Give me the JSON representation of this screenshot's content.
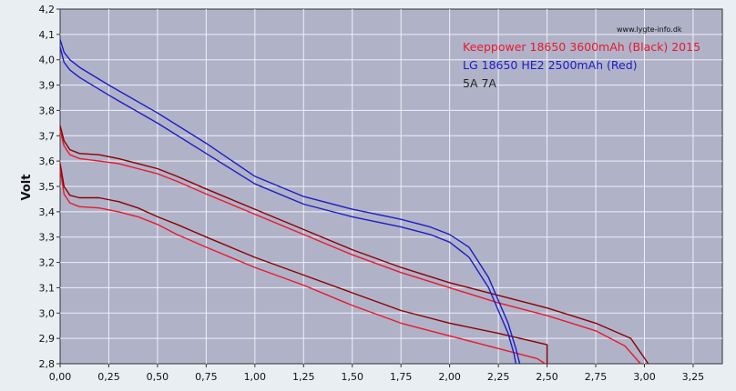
{
  "chart_data": {
    "type": "line",
    "title": "",
    "watermark": "www.lygte-info.dk",
    "xlabel": "",
    "ylabel": "Volt",
    "xlim": [
      0,
      3.4
    ],
    "ylim": [
      2.8,
      4.2
    ],
    "x_ticks": [
      "0,00",
      "0,25",
      "0,50",
      "0,75",
      "1,00",
      "1,25",
      "1,50",
      "1,75",
      "2,00",
      "2,25",
      "2,50",
      "2,75",
      "3,00",
      "3,25"
    ],
    "y_ticks": [
      "2,8",
      "2,9",
      "3,0",
      "3,1",
      "3,2",
      "3,3",
      "3,4",
      "3,5",
      "3,6",
      "3,7",
      "3,8",
      "3,9",
      "4,0",
      "4,1",
      "4,2"
    ],
    "grid": true,
    "legend_position": "top-right",
    "legend": [
      {
        "label": "Keeppower 18650 3600mAh (Black) 2015",
        "color": "#e8192c"
      },
      {
        "label": "LG 18650 HE2 2500mAh (Red)",
        "color": "#1c1cc8"
      },
      {
        "label": "5A 7A",
        "color": "#222222"
      }
    ],
    "colors": {
      "plot_bg": "#b0b2c8",
      "grid": "#f0f0f8",
      "frame_bg": "#e9eef3"
    },
    "series": [
      {
        "color": "#e8192c",
        "x": [
          0,
          0.02,
          0.05,
          0.1,
          0.2,
          0.3,
          0.4,
          0.5,
          0.6,
          0.75,
          1.0,
          1.25,
          1.5,
          1.75,
          2.0,
          2.25,
          2.5,
          2.75,
          2.9,
          2.98
        ],
        "y": [
          3.72,
          3.66,
          3.625,
          3.61,
          3.6,
          3.59,
          3.57,
          3.55,
          3.52,
          3.47,
          3.39,
          3.31,
          3.23,
          3.16,
          3.1,
          3.04,
          2.99,
          2.93,
          2.87,
          2.8
        ]
      },
      {
        "color": "#8b0000",
        "x": [
          0,
          0.02,
          0.05,
          0.1,
          0.2,
          0.3,
          0.4,
          0.5,
          0.6,
          0.75,
          1.0,
          1.25,
          1.5,
          1.75,
          2.0,
          2.25,
          2.5,
          2.75,
          2.93,
          3.02
        ],
        "y": [
          3.74,
          3.68,
          3.645,
          3.63,
          3.625,
          3.61,
          3.59,
          3.57,
          3.54,
          3.49,
          3.41,
          3.33,
          3.25,
          3.18,
          3.12,
          3.07,
          3.02,
          2.96,
          2.9,
          2.8
        ]
      },
      {
        "color": "#e8192c",
        "x": [
          0,
          0.02,
          0.05,
          0.1,
          0.2,
          0.3,
          0.4,
          0.5,
          0.6,
          0.75,
          1.0,
          1.25,
          1.5,
          1.75,
          2.0,
          2.25,
          2.45,
          2.49
        ],
        "y": [
          3.57,
          3.47,
          3.435,
          3.42,
          3.415,
          3.4,
          3.38,
          3.35,
          3.31,
          3.26,
          3.18,
          3.11,
          3.03,
          2.96,
          2.91,
          2.86,
          2.82,
          2.8
        ]
      },
      {
        "color": "#8b0000",
        "x": [
          0,
          0.02,
          0.05,
          0.1,
          0.2,
          0.3,
          0.4,
          0.5,
          0.6,
          0.75,
          1.0,
          1.25,
          1.5,
          1.75,
          2.0,
          2.25,
          2.5,
          2.5
        ],
        "y": [
          3.59,
          3.5,
          3.465,
          3.455,
          3.455,
          3.44,
          3.415,
          3.38,
          3.35,
          3.3,
          3.22,
          3.15,
          3.08,
          3.01,
          2.96,
          2.92,
          2.875,
          2.8
        ]
      },
      {
        "color": "#1c1cc8",
        "x": [
          0,
          0.02,
          0.05,
          0.1,
          0.25,
          0.5,
          0.75,
          1.0,
          1.25,
          1.5,
          1.75,
          1.9,
          2.0,
          2.1,
          2.2,
          2.25,
          2.3,
          2.34,
          2.36
        ],
        "y": [
          4.08,
          4.03,
          4.0,
          3.97,
          3.9,
          3.79,
          3.67,
          3.54,
          3.46,
          3.41,
          3.37,
          3.34,
          3.31,
          3.26,
          3.14,
          3.05,
          2.96,
          2.86,
          2.8
        ]
      },
      {
        "color": "#1c1cc8",
        "x": [
          0,
          0.02,
          0.05,
          0.1,
          0.25,
          0.5,
          0.75,
          1.0,
          1.25,
          1.5,
          1.75,
          1.9,
          2.0,
          2.1,
          2.2,
          2.25,
          2.3,
          2.33,
          2.34
        ],
        "y": [
          4.05,
          3.99,
          3.96,
          3.93,
          3.86,
          3.75,
          3.63,
          3.51,
          3.43,
          3.38,
          3.34,
          3.31,
          3.28,
          3.22,
          3.1,
          3.01,
          2.92,
          2.84,
          2.8
        ]
      }
    ]
  }
}
